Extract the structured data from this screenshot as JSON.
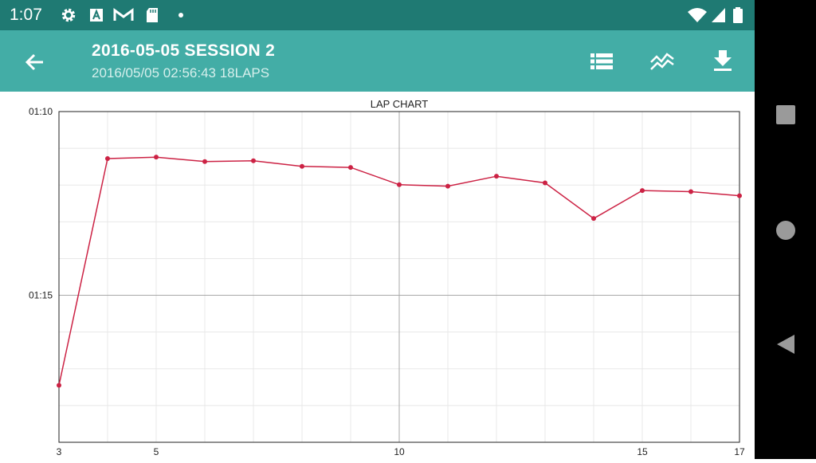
{
  "status_bar": {
    "time": "1:07",
    "icons": [
      "gear-icon",
      "a-notification-icon",
      "gmail-icon",
      "sd-card-icon",
      "dot-icon",
      "wifi-icon",
      "signal-icon",
      "battery-icon"
    ]
  },
  "app_bar": {
    "title": "2016-05-05 SESSION 2",
    "subtitle": "2016/05/05 02:56:43 18LAPS",
    "actions": [
      "list-icon",
      "trend-icon",
      "download-icon"
    ]
  },
  "colors": {
    "status_bar": "#1f7a73",
    "app_bar": "#43ada6",
    "series": "#cc2244"
  },
  "chart_data": {
    "type": "line",
    "title": "LAP CHART",
    "x": [
      3,
      4,
      5,
      6,
      7,
      8,
      9,
      10,
      11,
      12,
      13,
      14,
      15,
      16,
      17
    ],
    "y_seconds": [
      77.45,
      71.28,
      71.24,
      71.36,
      71.34,
      71.49,
      71.52,
      71.99,
      72.03,
      71.76,
      71.94,
      72.91,
      72.15,
      72.18,
      72.29
    ],
    "x_range": [
      3,
      17
    ],
    "y_range_seconds": [
      70,
      79
    ],
    "y_inverted": true,
    "x_ticks": [
      "3",
      "5",
      "10",
      "15",
      "17"
    ],
    "y_ticks": [
      "01:10",
      "01:15"
    ],
    "grid": true
  }
}
